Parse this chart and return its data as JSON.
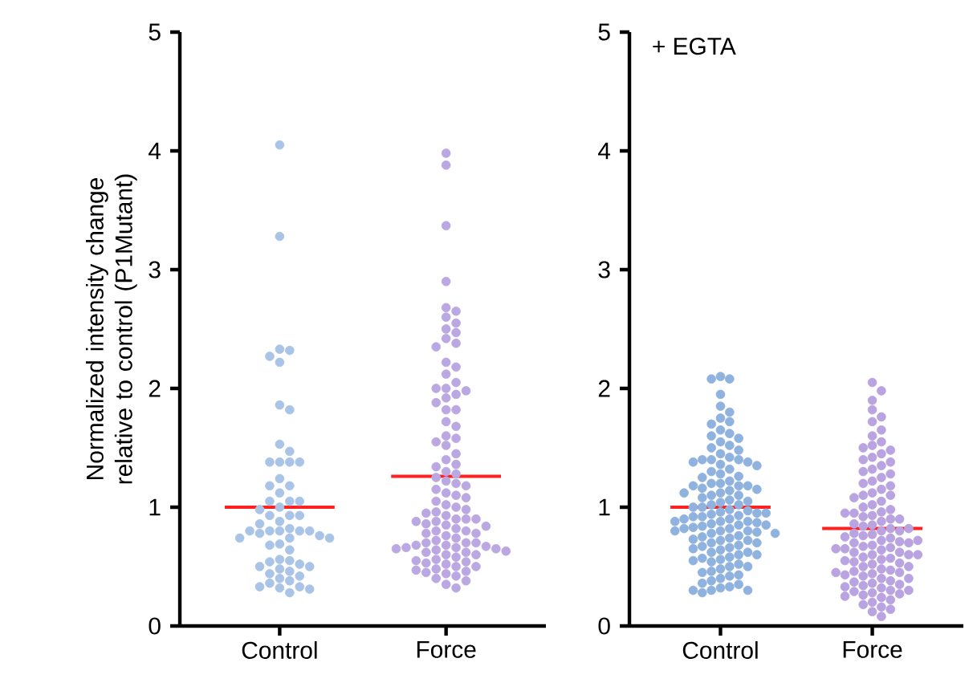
{
  "chart_data": [
    {
      "type": "scatter",
      "ylabel": "Normalized intensity change relative to control (P1Mutant)",
      "categories": [
        "Control",
        "Force"
      ],
      "ylim": [
        0,
        5
      ],
      "yticks": [
        0,
        1,
        2,
        3,
        4,
        5
      ],
      "grid": false,
      "marker": "circle",
      "series": [
        {
          "color": "#a9c4e6",
          "x": [
            "Control",
            "Control",
            "Control",
            "Control",
            "Control",
            "Control",
            "Control",
            "Control",
            "Control",
            "Control",
            "Control",
            "Control",
            "Control",
            "Control",
            "Control",
            "Control",
            "Control",
            "Control",
            "Control",
            "Control",
            "Control",
            "Control",
            "Control",
            "Control",
            "Control",
            "Control",
            "Control",
            "Control",
            "Control",
            "Control",
            "Control",
            "Control",
            "Control",
            "Control",
            "Control",
            "Control",
            "Control",
            "Control",
            "Control",
            "Control",
            "Control",
            "Control",
            "Control",
            "Control",
            "Control",
            "Control",
            "Control",
            "Control",
            "Control",
            "Control",
            "Control",
            "Control",
            "Control",
            "Control",
            "Control",
            "Control",
            "Control",
            "Control",
            "Control",
            "Control"
          ],
          "values": [
            4.05,
            3.28,
            2.33,
            2.32,
            2.27,
            2.22,
            1.86,
            1.82,
            1.53,
            1.47,
            1.38,
            1.38,
            1.38,
            1.38,
            1.24,
            1.18,
            1.18,
            1.12,
            1.05,
            1.05,
            1.05,
            1.0,
            0.98,
            0.93,
            0.93,
            0.93,
            0.88,
            0.86,
            0.82,
            0.8,
            0.8,
            0.8,
            0.8,
            0.8,
            0.78,
            0.76,
            0.74,
            0.74,
            0.74,
            0.69,
            0.68,
            0.64,
            0.56,
            0.55,
            0.54,
            0.52,
            0.5,
            0.5,
            0.48,
            0.46,
            0.44,
            0.42,
            0.4,
            0.38,
            0.36,
            0.33,
            0.33,
            0.32,
            0.31,
            0.28
          ]
        },
        {
          "color": "#bba8e2",
          "x": [
            "Force",
            "Force",
            "Force",
            "Force",
            "Force",
            "Force",
            "Force",
            "Force",
            "Force",
            "Force",
            "Force",
            "Force",
            "Force",
            "Force",
            "Force",
            "Force",
            "Force",
            "Force",
            "Force",
            "Force",
            "Force",
            "Force",
            "Force",
            "Force",
            "Force",
            "Force",
            "Force",
            "Force",
            "Force",
            "Force",
            "Force",
            "Force",
            "Force",
            "Force",
            "Force",
            "Force",
            "Force",
            "Force",
            "Force",
            "Force",
            "Force",
            "Force",
            "Force",
            "Force",
            "Force",
            "Force",
            "Force",
            "Force",
            "Force",
            "Force",
            "Force",
            "Force",
            "Force",
            "Force",
            "Force",
            "Force",
            "Force",
            "Force",
            "Force",
            "Force",
            "Force",
            "Force",
            "Force",
            "Force",
            "Force",
            "Force",
            "Force",
            "Force",
            "Force",
            "Force",
            "Force",
            "Force",
            "Force",
            "Force",
            "Force",
            "Force",
            "Force",
            "Force",
            "Force",
            "Force",
            "Force",
            "Force",
            "Force",
            "Force",
            "Force",
            "Force",
            "Force",
            "Force",
            "Force",
            "Force",
            "Force",
            "Force",
            "Force",
            "Force",
            "Force",
            "Force",
            "Force",
            "Force",
            "Force",
            "Force",
            "Force",
            "Force"
          ],
          "values": [
            3.98,
            3.88,
            3.37,
            2.9,
            2.68,
            2.65,
            2.6,
            2.55,
            2.5,
            2.47,
            2.42,
            2.38,
            2.35,
            2.22,
            2.18,
            2.12,
            2.05,
            2.0,
            2.0,
            1.98,
            1.95,
            1.92,
            1.88,
            1.82,
            1.82,
            1.72,
            1.68,
            1.6,
            1.58,
            1.55,
            1.52,
            1.45,
            1.4,
            1.36,
            1.34,
            1.3,
            1.28,
            1.25,
            1.22,
            1.2,
            1.18,
            1.15,
            1.12,
            1.1,
            1.08,
            1.05,
            1.02,
            1.0,
            0.98,
            0.96,
            0.95,
            0.93,
            0.9,
            0.9,
            0.9,
            0.88,
            0.88,
            0.86,
            0.85,
            0.84,
            0.82,
            0.8,
            0.8,
            0.78,
            0.78,
            0.76,
            0.74,
            0.72,
            0.7,
            0.7,
            0.7,
            0.68,
            0.68,
            0.67,
            0.66,
            0.66,
            0.65,
            0.65,
            0.64,
            0.63,
            0.62,
            0.62,
            0.6,
            0.6,
            0.58,
            0.56,
            0.55,
            0.54,
            0.53,
            0.52,
            0.5,
            0.5,
            0.48,
            0.47,
            0.46,
            0.45,
            0.44,
            0.42,
            0.4,
            0.38,
            0.35,
            0.32
          ]
        }
      ],
      "ref_lines": [
        {
          "axis": "y",
          "value": 1.0,
          "color": "#ff2020"
        },
        {
          "axis": "y",
          "value": 1.26,
          "color": "#ff2020"
        }
      ]
    },
    {
      "type": "scatter",
      "annotations": [
        "+ EGTA"
      ],
      "categories": [
        "Control",
        "Force"
      ],
      "ylim": [
        0,
        5
      ],
      "yticks": [
        0,
        1,
        2,
        3,
        4,
        5
      ],
      "grid": false,
      "marker": "circle",
      "series": [
        {
          "color": "#8fb2de",
          "x": [
            "Control",
            "Control",
            "Control",
            "Control",
            "Control",
            "Control",
            "Control",
            "Control",
            "Control",
            "Control",
            "Control",
            "Control",
            "Control",
            "Control",
            "Control",
            "Control",
            "Control",
            "Control",
            "Control",
            "Control",
            "Control",
            "Control",
            "Control",
            "Control",
            "Control",
            "Control",
            "Control",
            "Control",
            "Control",
            "Control",
            "Control",
            "Control",
            "Control",
            "Control",
            "Control",
            "Control",
            "Control",
            "Control",
            "Control",
            "Control",
            "Control",
            "Control",
            "Control",
            "Control",
            "Control",
            "Control",
            "Control",
            "Control",
            "Control",
            "Control",
            "Control",
            "Control",
            "Control",
            "Control",
            "Control",
            "Control",
            "Control",
            "Control",
            "Control",
            "Control",
            "Control",
            "Control",
            "Control",
            "Control",
            "Control",
            "Control",
            "Control",
            "Control",
            "Control",
            "Control",
            "Control",
            "Control",
            "Control",
            "Control",
            "Control",
            "Control",
            "Control",
            "Control",
            "Control",
            "Control",
            "Control",
            "Control",
            "Control",
            "Control",
            "Control",
            "Control",
            "Control",
            "Control",
            "Control",
            "Control",
            "Control",
            "Control",
            "Control",
            "Control",
            "Control",
            "Control",
            "Control",
            "Control",
            "Control",
            "Control",
            "Control",
            "Control",
            "Control",
            "Control",
            "Control",
            "Control",
            "Control",
            "Control",
            "Control",
            "Control",
            "Control",
            "Control",
            "Control",
            "Control",
            "Control",
            "Control",
            "Control",
            "Control",
            "Control",
            "Control"
          ],
          "values": [
            2.1,
            2.08,
            2.08,
            1.95,
            1.85,
            1.8,
            1.75,
            1.72,
            1.7,
            1.65,
            1.62,
            1.6,
            1.58,
            1.55,
            1.52,
            1.5,
            1.48,
            1.45,
            1.42,
            1.4,
            1.4,
            1.4,
            1.38,
            1.38,
            1.36,
            1.35,
            1.32,
            1.3,
            1.28,
            1.26,
            1.25,
            1.22,
            1.2,
            1.2,
            1.18,
            1.18,
            1.18,
            1.16,
            1.15,
            1.14,
            1.12,
            1.1,
            1.1,
            1.08,
            1.06,
            1.05,
            1.04,
            1.02,
            1.02,
            1.0,
            1.0,
            0.98,
            0.97,
            0.96,
            0.95,
            0.94,
            0.93,
            0.92,
            0.92,
            0.9,
            0.9,
            0.88,
            0.88,
            0.87,
            0.86,
            0.85,
            0.85,
            0.84,
            0.83,
            0.82,
            0.82,
            0.8,
            0.8,
            0.8,
            0.79,
            0.78,
            0.78,
            0.76,
            0.75,
            0.74,
            0.73,
            0.72,
            0.72,
            0.7,
            0.7,
            0.68,
            0.67,
            0.66,
            0.65,
            0.64,
            0.62,
            0.62,
            0.6,
            0.6,
            0.58,
            0.57,
            0.56,
            0.55,
            0.54,
            0.52,
            0.5,
            0.5,
            0.48,
            0.46,
            0.45,
            0.43,
            0.42,
            0.4,
            0.38,
            0.36,
            0.35,
            0.33,
            0.32,
            0.3,
            0.3,
            0.3,
            0.28,
            1.12,
            0.95,
            0.88
          ]
        },
        {
          "color": "#b9a3e0",
          "x": [
            "Force",
            "Force",
            "Force",
            "Force",
            "Force",
            "Force",
            "Force",
            "Force",
            "Force",
            "Force",
            "Force",
            "Force",
            "Force",
            "Force",
            "Force",
            "Force",
            "Force",
            "Force",
            "Force",
            "Force",
            "Force",
            "Force",
            "Force",
            "Force",
            "Force",
            "Force",
            "Force",
            "Force",
            "Force",
            "Force",
            "Force",
            "Force",
            "Force",
            "Force",
            "Force",
            "Force",
            "Force",
            "Force",
            "Force",
            "Force",
            "Force",
            "Force",
            "Force",
            "Force",
            "Force",
            "Force",
            "Force",
            "Force",
            "Force",
            "Force",
            "Force",
            "Force",
            "Force",
            "Force",
            "Force",
            "Force",
            "Force",
            "Force",
            "Force",
            "Force",
            "Force",
            "Force",
            "Force",
            "Force",
            "Force",
            "Force",
            "Force",
            "Force",
            "Force",
            "Force",
            "Force",
            "Force",
            "Force",
            "Force",
            "Force",
            "Force",
            "Force",
            "Force",
            "Force",
            "Force",
            "Force",
            "Force",
            "Force",
            "Force",
            "Force",
            "Force",
            "Force",
            "Force",
            "Force",
            "Force",
            "Force",
            "Force",
            "Force",
            "Force",
            "Force",
            "Force",
            "Force",
            "Force",
            "Force",
            "Force",
            "Force",
            "Force",
            "Force",
            "Force",
            "Force",
            "Force",
            "Force",
            "Force",
            "Force",
            "Force"
          ],
          "values": [
            2.05,
            1.98,
            1.9,
            1.82,
            1.76,
            1.72,
            1.65,
            1.6,
            1.55,
            1.52,
            1.5,
            1.48,
            1.45,
            1.42,
            1.4,
            1.38,
            1.35,
            1.32,
            1.3,
            1.28,
            1.25,
            1.22,
            1.2,
            1.18,
            1.15,
            1.12,
            1.1,
            1.1,
            1.08,
            1.05,
            1.02,
            1.0,
            0.98,
            0.96,
            0.95,
            0.93,
            0.92,
            0.9,
            0.9,
            0.88,
            0.86,
            0.85,
            0.84,
            0.82,
            0.8,
            0.8,
            0.78,
            0.77,
            0.76,
            0.75,
            0.74,
            0.72,
            0.71,
            0.7,
            0.7,
            0.68,
            0.67,
            0.66,
            0.65,
            0.65,
            0.64,
            0.62,
            0.62,
            0.6,
            0.6,
            0.58,
            0.57,
            0.56,
            0.55,
            0.54,
            0.53,
            0.52,
            0.5,
            0.5,
            0.48,
            0.47,
            0.46,
            0.45,
            0.44,
            0.43,
            0.42,
            0.4,
            0.4,
            0.38,
            0.37,
            0.36,
            0.35,
            0.34,
            0.33,
            0.32,
            0.3,
            0.3,
            0.29,
            0.28,
            0.27,
            0.26,
            0.25,
            0.24,
            0.22,
            0.2,
            0.18,
            0.16,
            0.14,
            0.12,
            0.08,
            0.95,
            0.82,
            0.72,
            0.6,
            0.45
          ]
        }
      ],
      "ref_lines": [
        {
          "axis": "y",
          "value": 1.0,
          "color": "#ff2020"
        },
        {
          "axis": "y",
          "value": 0.82,
          "color": "#ff2020"
        }
      ]
    }
  ]
}
